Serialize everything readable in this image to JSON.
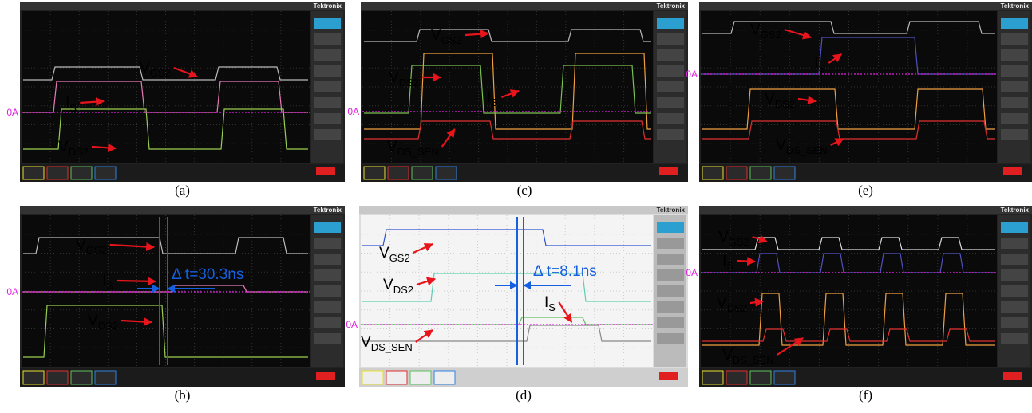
{
  "panels": [
    {
      "caption": "(a)",
      "brand": "Tektronix",
      "zero_label": "0A",
      "labels": [
        {
          "main": "V",
          "sub": "GS2"
        },
        {
          "main": "I",
          "sub": "S"
        },
        {
          "main": "V",
          "sub": "DS2"
        }
      ]
    },
    {
      "caption": "(b)",
      "brand": "Tektronix",
      "zero_label": "0A",
      "labels": [
        {
          "main": "V",
          "sub": "GS2"
        },
        {
          "main": "I",
          "sub": "S"
        },
        {
          "main": "V",
          "sub": "DS2"
        }
      ],
      "delta_t": "Δ t=30.3ns"
    },
    {
      "caption": "(c)",
      "brand": "Tektronix",
      "zero_label": "0A",
      "labels": [
        {
          "main": "V",
          "sub": "GS2"
        },
        {
          "main": "V",
          "sub": "DS2"
        },
        {
          "main": "I",
          "sub": "S"
        },
        {
          "main": "V",
          "sub": "DS_SEN"
        }
      ]
    },
    {
      "caption": "(d)",
      "brand": "Tektronix",
      "zero_label": "0A",
      "labels": [
        {
          "main": "V",
          "sub": "GS2"
        },
        {
          "main": "V",
          "sub": "DS2"
        },
        {
          "main": "I",
          "sub": "S"
        },
        {
          "main": "V",
          "sub": "DS_SEN"
        }
      ],
      "delta_t": "Δ t=8.1ns"
    },
    {
      "caption": "(e)",
      "brand": "Tektronix",
      "zero_label": "0A",
      "labels": [
        {
          "main": "V",
          "sub": "GS2"
        },
        {
          "main": "I",
          "sub": "S"
        },
        {
          "main": "V",
          "sub": "DS2"
        },
        {
          "main": "V",
          "sub": "DS_SEN"
        }
      ]
    },
    {
      "caption": "(f)",
      "brand": "Tektronix",
      "zero_label": "0A",
      "labels": [
        {
          "main": "V",
          "sub": "GS2"
        },
        {
          "main": "I",
          "sub": "S"
        },
        {
          "main": "V",
          "sub": "DS2"
        },
        {
          "main": "V",
          "sub": "DS_SEN"
        }
      ]
    }
  ]
}
